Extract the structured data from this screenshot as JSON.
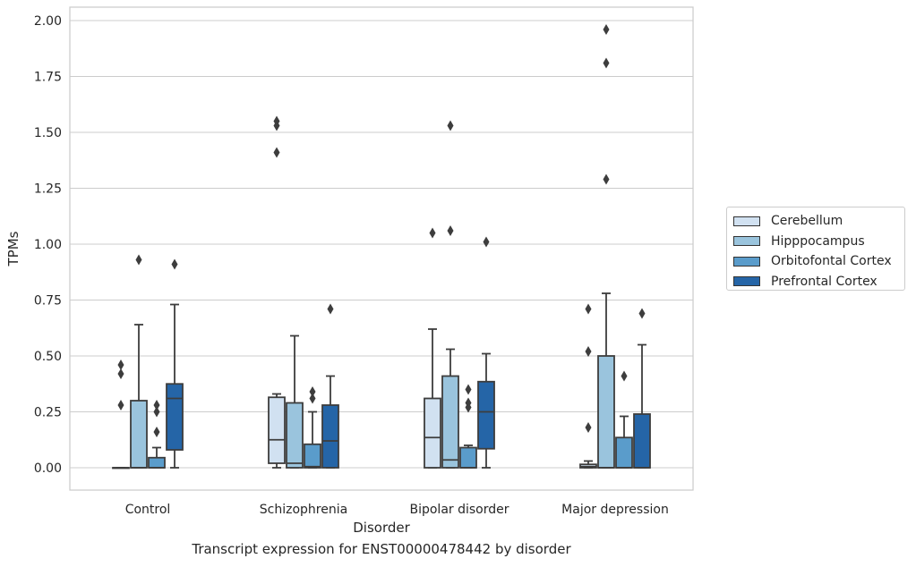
{
  "chart_data": {
    "type": "box",
    "caption": "Transcript expression for ENST00000478442 by disorder",
    "xlabel": "Disorder",
    "ylabel": "TPMs",
    "ylim": [
      -0.1,
      2.06
    ],
    "yticks": [
      "0.00",
      "0.25",
      "0.50",
      "0.75",
      "1.00",
      "1.25",
      "1.50",
      "1.75",
      "2.00"
    ],
    "ytick_values": [
      0,
      0.25,
      0.5,
      0.75,
      1.0,
      1.25,
      1.5,
      1.75,
      2.0
    ],
    "grid": "horizontal",
    "legend_position": "outside-right",
    "categories": [
      "Control",
      "Schizophrenia",
      "Bipolar disorder",
      "Major depression"
    ],
    "series": [
      {
        "name": "Cerebellum",
        "color": "#d1e1f1",
        "boxes": [
          {
            "whislo": 0,
            "q1": 0,
            "med": 0,
            "q3": 0,
            "whishi": 0,
            "fliers": [
              0.28,
              0.42,
              0.46
            ]
          },
          {
            "whislo": 0,
            "q1": 0.02,
            "med": 0.125,
            "q3": 0.315,
            "whishi": 0.33,
            "fliers": [
              1.41,
              1.53,
              1.55
            ]
          },
          {
            "whislo": 0,
            "q1": 0,
            "med": 0.135,
            "q3": 0.31,
            "whishi": 0.62,
            "fliers": [
              1.05
            ]
          },
          {
            "whislo": 0,
            "q1": 0,
            "med": 0.005,
            "q3": 0.015,
            "whishi": 0.03,
            "fliers": [
              0.18,
              0.52,
              0.71
            ]
          }
        ]
      },
      {
        "name": "Hipppocampus",
        "color": "#9ac4dd",
        "boxes": [
          {
            "whislo": 0,
            "q1": 0,
            "med": 0,
            "q3": 0.3,
            "whishi": 0.64,
            "fliers": [
              0.93
            ]
          },
          {
            "whislo": 0,
            "q1": 0,
            "med": 0.02,
            "q3": 0.29,
            "whishi": 0.59,
            "fliers": []
          },
          {
            "whislo": 0,
            "q1": 0,
            "med": 0.035,
            "q3": 0.41,
            "whishi": 0.53,
            "fliers": [
              1.06,
              1.53
            ]
          },
          {
            "whislo": 0,
            "q1": 0,
            "med": 0,
            "q3": 0.5,
            "whishi": 0.78,
            "fliers": [
              1.29,
              1.81,
              1.96
            ]
          }
        ]
      },
      {
        "name": "Orbitofontal Cortex",
        "color": "#5a9ccb",
        "boxes": [
          {
            "whislo": 0,
            "q1": 0,
            "med": 0,
            "q3": 0.045,
            "whishi": 0.09,
            "fliers": [
              0.16,
              0.25,
              0.28
            ]
          },
          {
            "whislo": 0,
            "q1": 0,
            "med": 0.005,
            "q3": 0.105,
            "whishi": 0.25,
            "fliers": [
              0.31,
              0.34
            ]
          },
          {
            "whislo": 0,
            "q1": 0,
            "med": 0,
            "q3": 0.09,
            "whishi": 0.1,
            "fliers": [
              0.27,
              0.29,
              0.35
            ]
          },
          {
            "whislo": 0,
            "q1": 0,
            "med": 0,
            "q3": 0.135,
            "whishi": 0.23,
            "fliers": [
              0.41
            ]
          }
        ]
      },
      {
        "name": "Prefrontal Cortex",
        "color": "#2565a7",
        "boxes": [
          {
            "whislo": 0,
            "q1": 0.08,
            "med": 0.31,
            "q3": 0.375,
            "whishi": 0.73,
            "fliers": [
              0.91
            ]
          },
          {
            "whislo": 0,
            "q1": 0,
            "med": 0.12,
            "q3": 0.28,
            "whishi": 0.41,
            "fliers": [
              0.71
            ]
          },
          {
            "whislo": 0,
            "q1": 0.085,
            "med": 0.25,
            "q3": 0.385,
            "whishi": 0.51,
            "fliers": [
              1.01
            ]
          },
          {
            "whislo": 0,
            "q1": 0,
            "med": 0,
            "q3": 0.24,
            "whishi": 0.55,
            "fliers": [
              0.69
            ]
          }
        ]
      }
    ]
  }
}
